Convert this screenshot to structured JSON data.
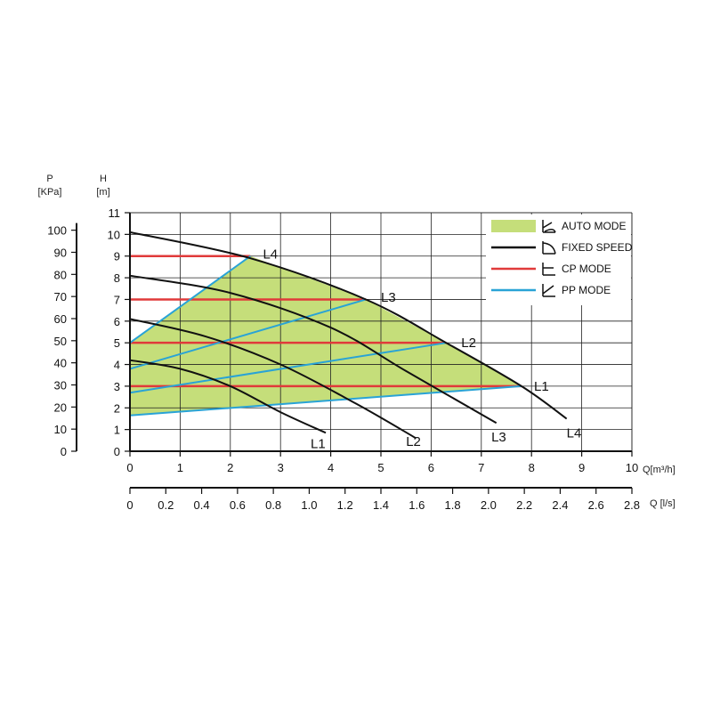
{
  "chart_data": {
    "type": "line",
    "axes": {
      "left_primary": {
        "unit_top": "H",
        "unit_bottom": "[m]",
        "ticks": [
          0,
          1,
          2,
          3,
          4,
          5,
          6,
          7,
          8,
          9,
          10,
          11
        ],
        "range": [
          0,
          11
        ]
      },
      "left_secondary": {
        "unit_top": "P",
        "unit_bottom": "[KPa]",
        "ticks": [
          0,
          10,
          20,
          30,
          40,
          50,
          60,
          70,
          80,
          90,
          100
        ]
      },
      "bottom_primary": {
        "label": "Q[m³/h]",
        "ticks": [
          0,
          1,
          2,
          3,
          4,
          5,
          6,
          7,
          8,
          9,
          10
        ],
        "range": [
          0,
          10
        ]
      },
      "bottom_secondary": {
        "label": "Q [l/s]",
        "ticks": [
          "0",
          "0.2",
          "0.4",
          "0.6",
          "0.8",
          "1.0",
          "1.2",
          "1.4",
          "1.6",
          "1.8",
          "2.0",
          "2.2",
          "2.4",
          "2.6",
          "2.8"
        ]
      }
    },
    "grid": true,
    "legend": {
      "placement": "top-right",
      "items": [
        {
          "label": "AUTO MODE",
          "icon": "auto-mode-icon",
          "color": "#c5de7a"
        },
        {
          "label": "FIXED SPEED",
          "icon": "fixed-speed-icon",
          "color": "#111111"
        },
        {
          "label": "CP MODE",
          "icon": "cp-mode-icon",
          "color": "#e03a3a"
        },
        {
          "label": "PP MODE",
          "icon": "pp-mode-icon",
          "color": "#29a3d6"
        }
      ]
    },
    "fixed_speed_curves": [
      {
        "name": "L1",
        "points": [
          [
            0,
            4.2
          ],
          [
            1,
            3.8
          ],
          [
            2,
            3.0
          ],
          [
            3,
            1.8
          ],
          [
            3.9,
            0.85
          ]
        ]
      },
      {
        "name": "L2",
        "points": [
          [
            0,
            6.1
          ],
          [
            1.5,
            5.3
          ],
          [
            3,
            4.0
          ],
          [
            4.5,
            2.2
          ],
          [
            5.7,
            0.6
          ]
        ]
      },
      {
        "name": "L3",
        "points": [
          [
            0,
            8.1
          ],
          [
            2,
            7.3
          ],
          [
            4,
            5.7
          ],
          [
            5.5,
            3.7
          ],
          [
            7.3,
            1.3
          ]
        ]
      },
      {
        "name": "L4",
        "points": [
          [
            0,
            10.1
          ],
          [
            2.4,
            8.9
          ],
          [
            4.7,
            7.0
          ],
          [
            6.3,
            5.0
          ],
          [
            7.8,
            3.0
          ],
          [
            8.7,
            1.5
          ]
        ]
      }
    ],
    "cp_lines": [
      {
        "name": "L1",
        "h": 3,
        "q_end": 7.8
      },
      {
        "name": "L2",
        "h": 5,
        "q_end": 6.3
      },
      {
        "name": "L3",
        "h": 7,
        "q_end": 4.7
      },
      {
        "name": "L4",
        "h": 9,
        "q_end": 2.4
      }
    ],
    "pp_lines": [
      {
        "name": "L1",
        "points": [
          [
            0,
            1.65
          ],
          [
            7.8,
            3.0
          ]
        ]
      },
      {
        "name": "L2",
        "points": [
          [
            0,
            2.7
          ],
          [
            6.3,
            5.0
          ]
        ]
      },
      {
        "name": "L3",
        "points": [
          [
            0,
            3.8
          ],
          [
            4.7,
            7.0
          ]
        ]
      },
      {
        "name": "L4",
        "points": [
          [
            0,
            5.0
          ],
          [
            2.4,
            9.0
          ]
        ]
      }
    ],
    "auto_mode_region": [
      [
        0,
        1.65
      ],
      [
        7.8,
        3.0
      ],
      [
        6.3,
        5.0
      ],
      [
        4.7,
        7.0
      ],
      [
        2.4,
        9.0
      ],
      [
        0,
        5.0
      ]
    ],
    "curve_labels": [
      {
        "text": "L4",
        "anchor": [
          2.65,
          9.1
        ]
      },
      {
        "text": "L3",
        "anchor": [
          5.0,
          7.1
        ]
      },
      {
        "text": "L2",
        "anchor": [
          6.6,
          5.0
        ]
      },
      {
        "text": "L1",
        "anchor": [
          8.05,
          3.0
        ]
      },
      {
        "text": "L1",
        "anchor": [
          3.6,
          0.35
        ]
      },
      {
        "text": "L2",
        "anchor": [
          5.5,
          0.45
        ]
      },
      {
        "text": "L3",
        "anchor": [
          7.2,
          0.65
        ]
      },
      {
        "text": "L4",
        "anchor": [
          8.7,
          0.85
        ]
      }
    ]
  }
}
